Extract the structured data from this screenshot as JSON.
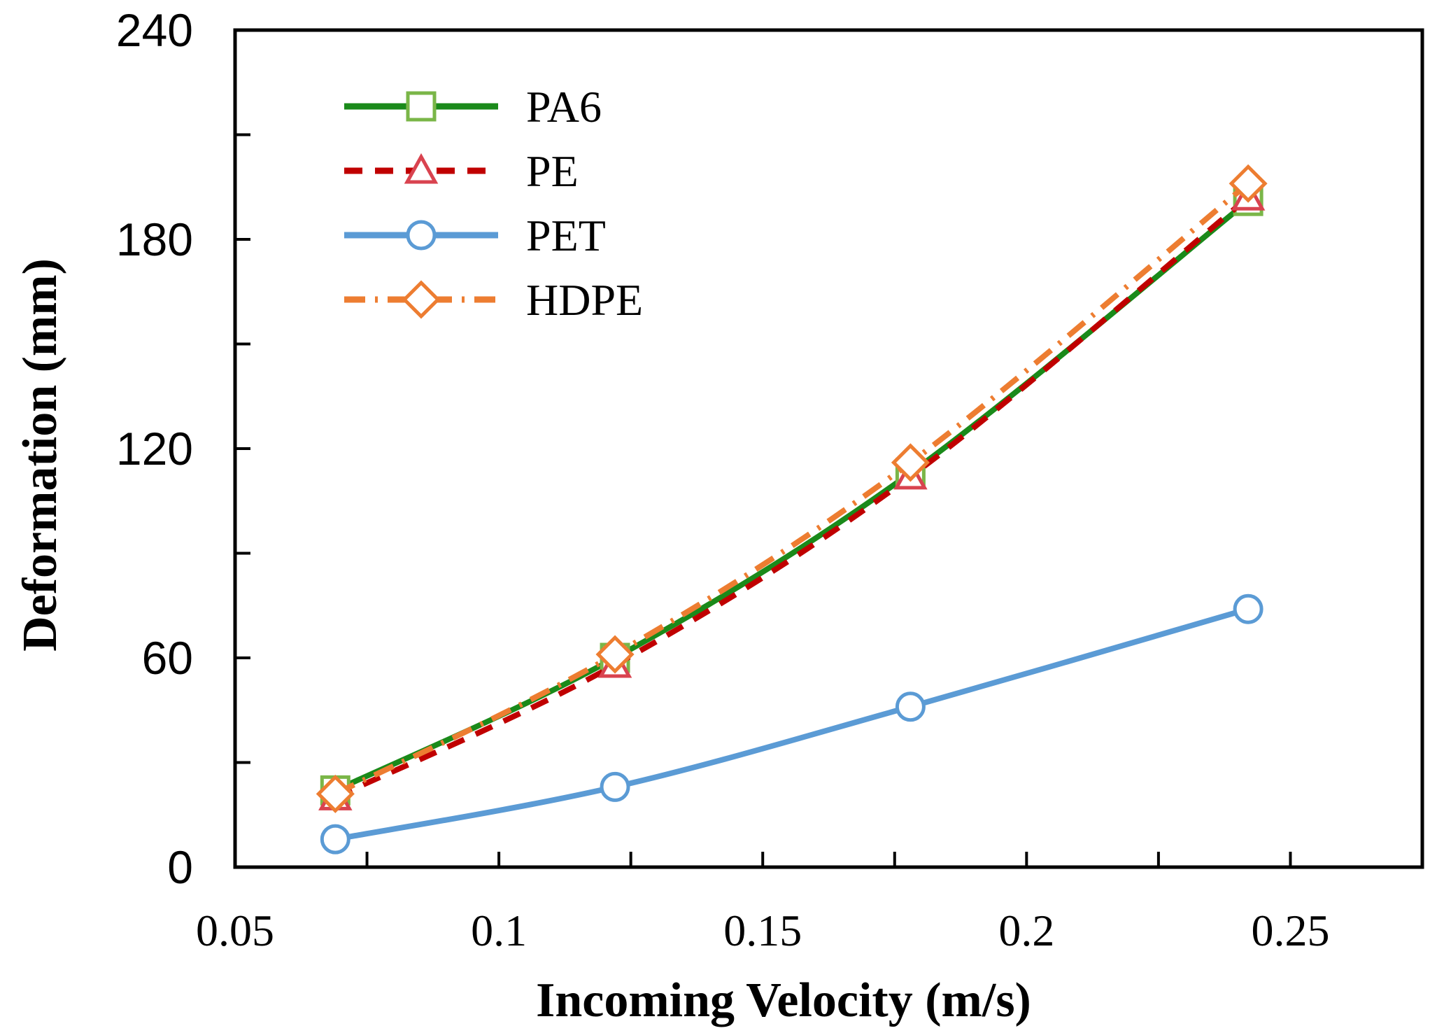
{
  "chart_data": {
    "type": "line",
    "title": "",
    "xlabel": "Incoming Velocity (m/s)",
    "ylabel": "Deformation (mm)",
    "xlim": [
      0.05,
      0.275
    ],
    "ylim": [
      0,
      240
    ],
    "xticks": [
      0.05,
      0.1,
      0.15,
      0.2,
      0.25
    ],
    "xtick_labels": [
      "0.05",
      "0.1",
      "0.15",
      "0.2",
      "0.25"
    ],
    "yticks": [
      0,
      60,
      120,
      180,
      240
    ],
    "ytick_labels": [
      "0",
      "60",
      "120",
      "180",
      "240"
    ],
    "yminor_ticks": [
      30,
      90,
      150,
      210
    ],
    "xminor_ticks": [
      0.075,
      0.125,
      0.175,
      0.225
    ],
    "legend_position": "top-left",
    "grid": false,
    "series": [
      {
        "name": "PA6",
        "color": "#1a8a1a",
        "marker_color": "#7ab648",
        "marker": "square",
        "dash": "solid",
        "x": [
          0.069,
          0.122,
          0.178,
          0.242
        ],
        "y": [
          22,
          60,
          113,
          191
        ]
      },
      {
        "name": "PE",
        "color": "#c00000",
        "marker_color": "#d9434f",
        "marker": "triangle",
        "dash": "dash",
        "x": [
          0.069,
          0.122,
          0.178,
          0.242
        ],
        "y": [
          20,
          58,
          112,
          192
        ]
      },
      {
        "name": "PET",
        "color": "#5b9bd5",
        "marker_color": "#5b9bd5",
        "marker": "circle",
        "dash": "solid",
        "x": [
          0.069,
          0.122,
          0.178,
          0.242
        ],
        "y": [
          8,
          23,
          46,
          74
        ]
      },
      {
        "name": "HDPE",
        "color": "#ed7d31",
        "marker_color": "#ed7d31",
        "marker": "diamond",
        "dash": "dashdot",
        "x": [
          0.069,
          0.122,
          0.178,
          0.242
        ],
        "y": [
          21,
          61,
          116,
          196
        ]
      }
    ]
  }
}
